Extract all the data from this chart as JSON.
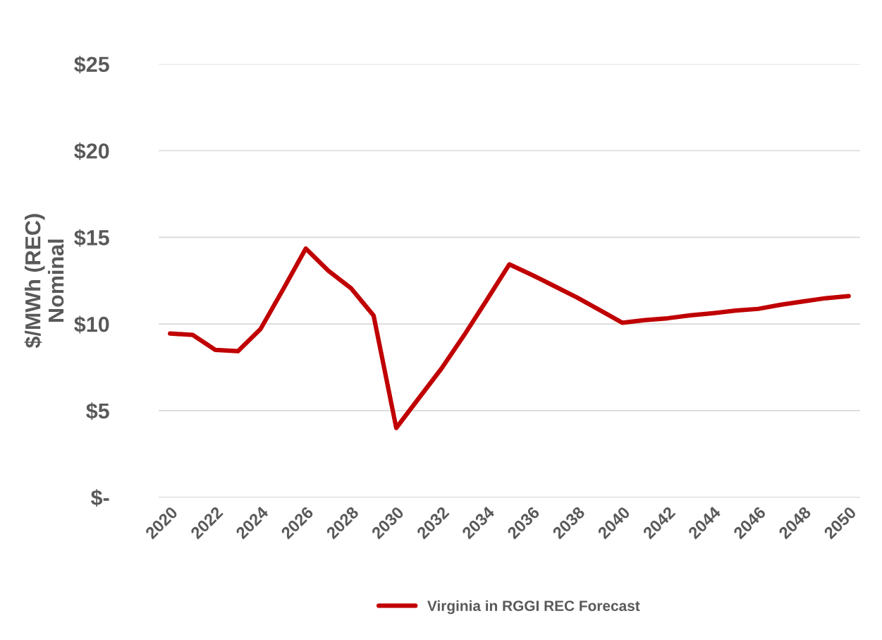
{
  "chart_data": {
    "type": "line",
    "ylabel": "$/MWh (REC)\nNominal",
    "categories": [
      "2020",
      null,
      "2022",
      null,
      "2024",
      null,
      "2026",
      null,
      "2028",
      null,
      "2030",
      null,
      "2032",
      null,
      "2034",
      null,
      "2036",
      null,
      "2038",
      null,
      "2040",
      null,
      "2042",
      null,
      "2044",
      null,
      "2046",
      null,
      "2048",
      null,
      "2050"
    ],
    "series": [
      {
        "name": "Virginia in RGGI REC Forecast",
        "color": "#c00000",
        "values": [
          9.45,
          9.37,
          8.5,
          8.43,
          9.71,
          12.0,
          14.35,
          13.07,
          12.06,
          10.48,
          4.0,
          5.72,
          7.43,
          9.35,
          11.38,
          13.44,
          12.83,
          12.18,
          11.52,
          10.8,
          10.07,
          10.22,
          10.33,
          10.5,
          10.62,
          10.77,
          10.87,
          11.11,
          11.3,
          11.49,
          11.61
        ]
      }
    ],
    "ylim": [
      0,
      25
    ],
    "yticks": [
      {
        "value": 0,
        "label": "$-"
      },
      {
        "value": 5,
        "label": "$5"
      },
      {
        "value": 10,
        "label": "$10"
      },
      {
        "value": 15,
        "label": "$15"
      },
      {
        "value": 20,
        "label": "$20"
      },
      {
        "value": 25,
        "label": "$25"
      }
    ],
    "grid": "y",
    "legend": "bottom",
    "marker": "none",
    "line_style": "solid"
  }
}
